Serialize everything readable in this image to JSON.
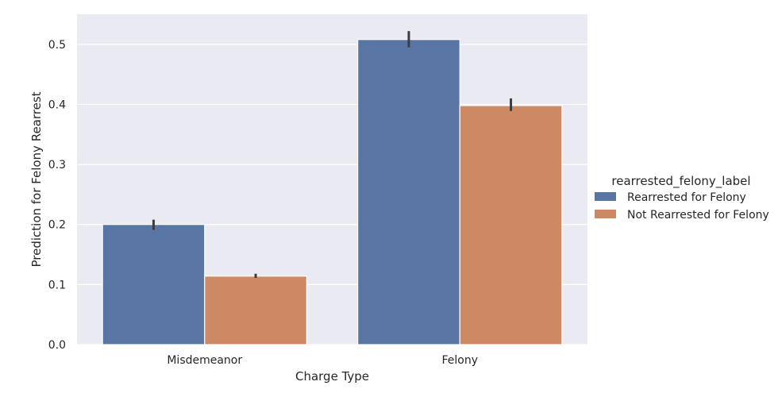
{
  "chart_data": {
    "type": "bar",
    "title": "",
    "xlabel": "Charge Type",
    "ylabel": "Prediction for Felony Rearrest",
    "categories": [
      "Misdemeanor",
      "Felony"
    ],
    "ylim": [
      0,
      0.55
    ],
    "yticks": [
      0.0,
      0.1,
      0.2,
      0.3,
      0.4,
      0.5
    ],
    "ytick_labels": [
      "0.0",
      "0.1",
      "0.2",
      "0.3",
      "0.4",
      "0.5"
    ],
    "grid": true,
    "legend": {
      "title": "rearrested_felony_label",
      "placement": "right-outside"
    },
    "series": [
      {
        "name": "Rearrested for Felony",
        "color": "#5875a4",
        "values": [
          0.2,
          0.508
        ],
        "ci_low": [
          0.191,
          0.495
        ],
        "ci_high": [
          0.208,
          0.522
        ]
      },
      {
        "name": "Not Rearrested for Felony",
        "color": "#cc8963",
        "values": [
          0.114,
          0.398
        ],
        "ci_low": [
          0.111,
          0.389
        ],
        "ci_high": [
          0.118,
          0.41
        ]
      }
    ]
  }
}
